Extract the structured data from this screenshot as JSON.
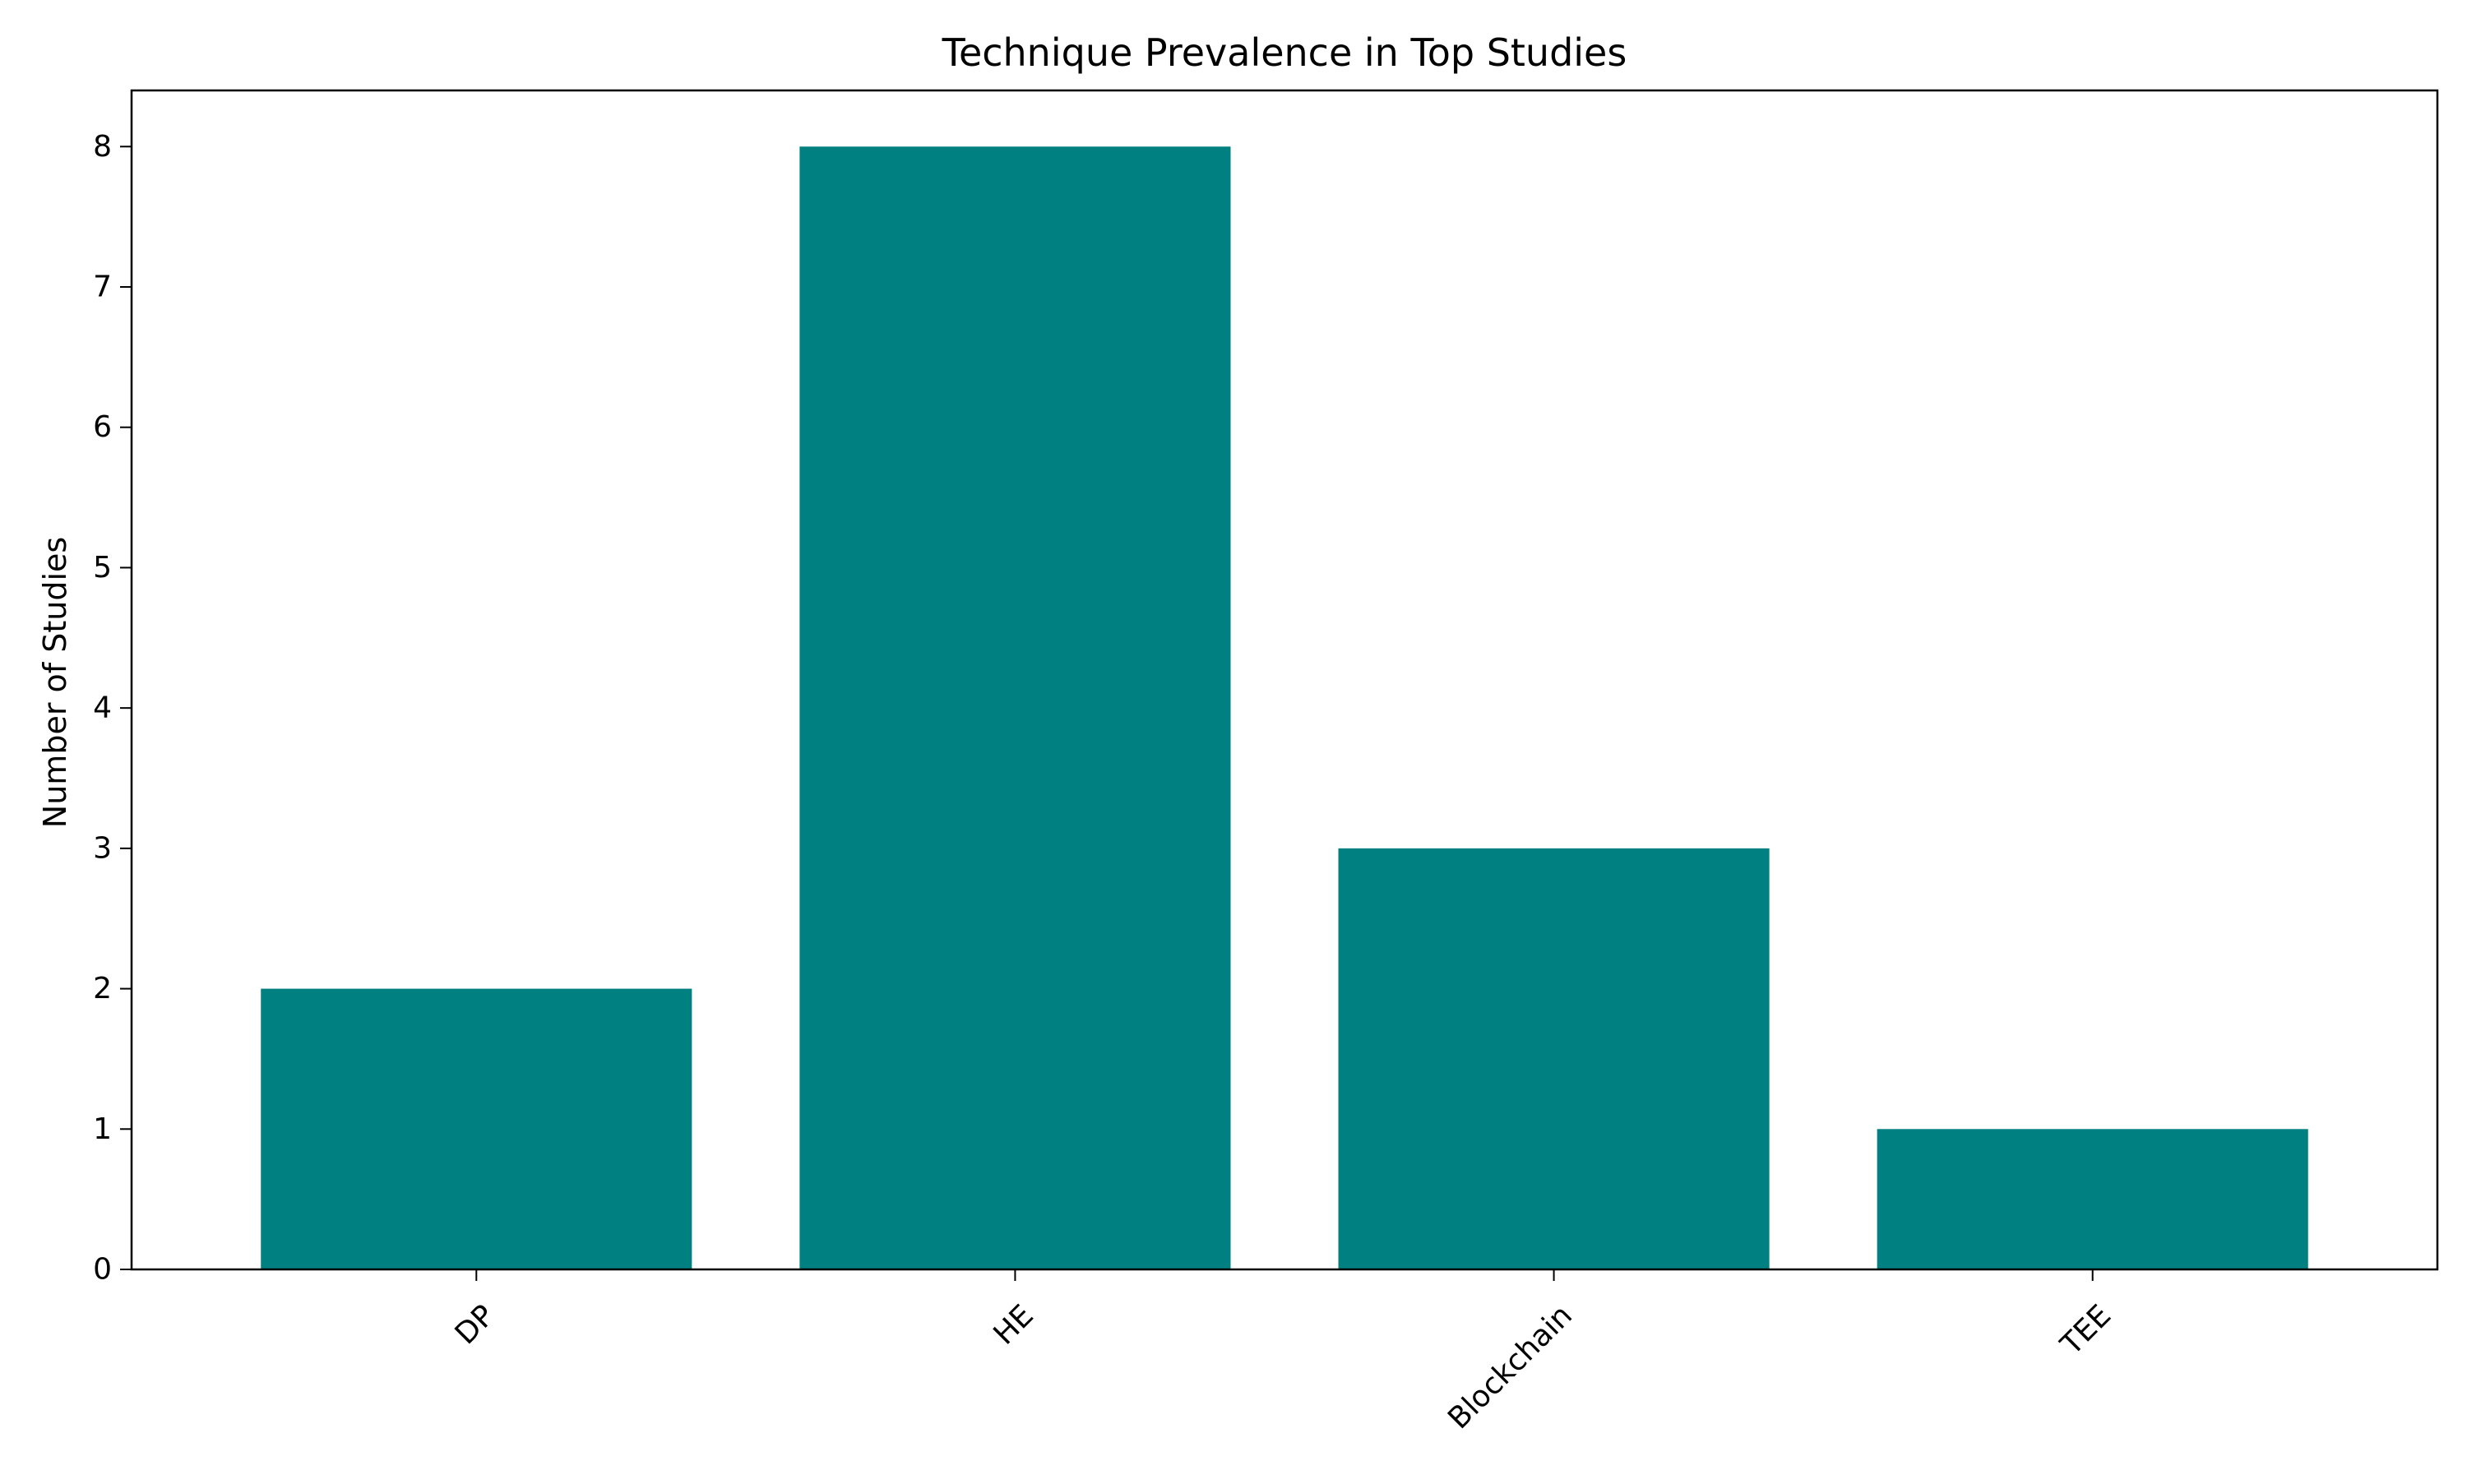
{
  "chart_data": {
    "type": "bar",
    "title": "Technique Prevalence in Top Studies",
    "xlabel": "",
    "ylabel": "Number of Studies",
    "categories": [
      "DP",
      "HE",
      "Blockchain",
      "TEE"
    ],
    "values": [
      2,
      8,
      3,
      1
    ],
    "ylim": [
      0,
      8.4
    ],
    "yticks": [
      0,
      1,
      2,
      3,
      4,
      5,
      6,
      7,
      8
    ],
    "bar_color": "#008080",
    "grid": false,
    "legend": "none",
    "xtick_rotation_deg": 45
  }
}
